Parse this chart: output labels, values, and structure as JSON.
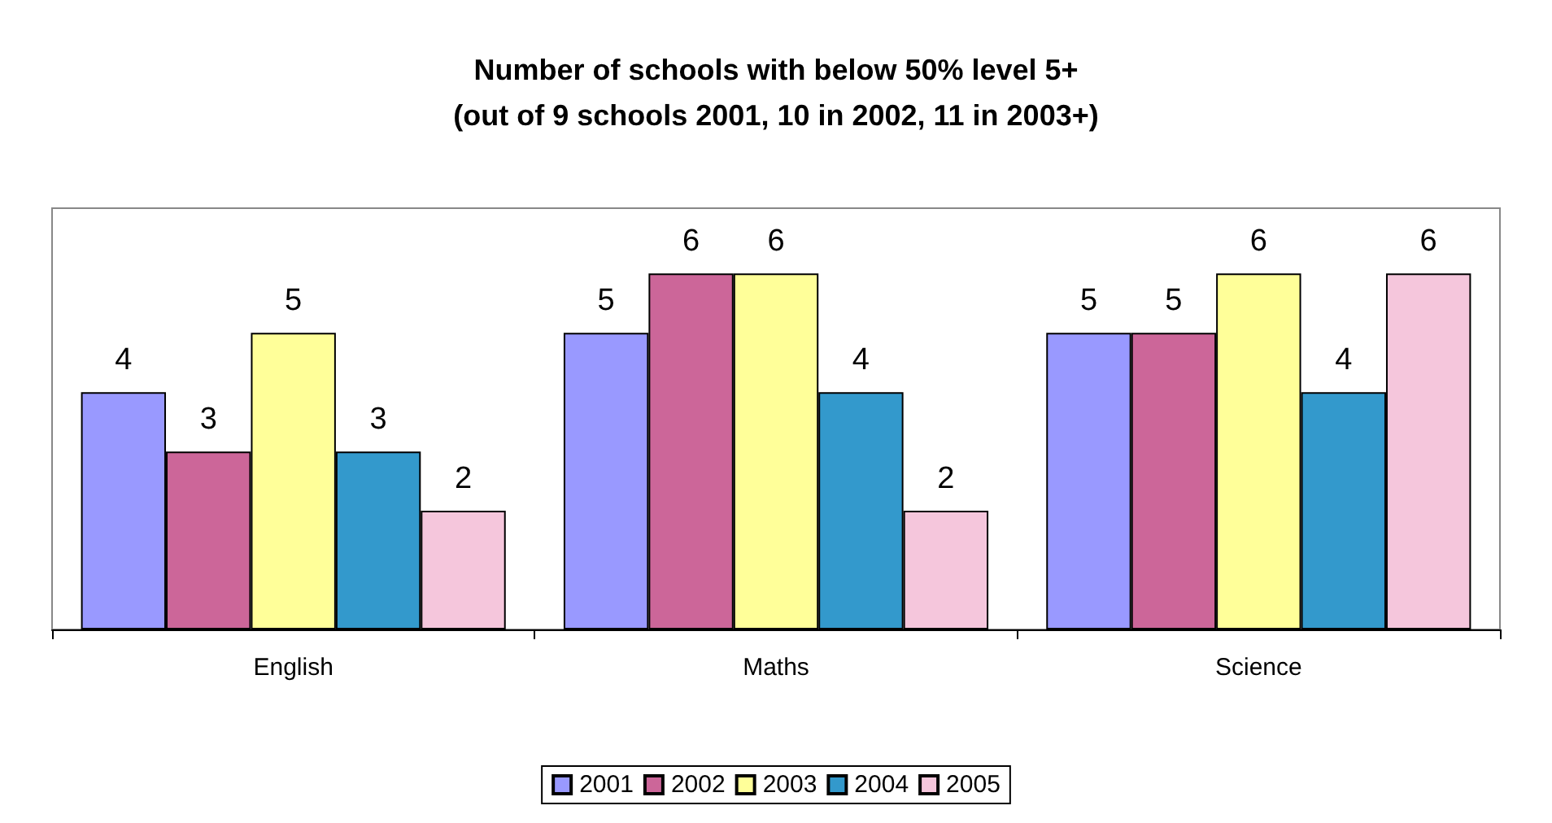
{
  "chart_data": {
    "type": "bar",
    "title": "Number of schools with below 50% level 5+\n(out of 9 schools 2001, 10 in 2002, 11 in 2003+)",
    "categories": [
      "English",
      "Maths",
      "Science"
    ],
    "series": [
      {
        "name": "2001",
        "color": "#9999ff",
        "values": [
          4,
          5,
          5
        ]
      },
      {
        "name": "2002",
        "color": "#cc6699",
        "values": [
          3,
          6,
          5
        ]
      },
      {
        "name": "2003",
        "color": "#ffff99",
        "values": [
          5,
          6,
          6
        ]
      },
      {
        "name": "2004",
        "color": "#3399cc",
        "values": [
          3,
          4,
          4
        ]
      },
      {
        "name": "2005",
        "color": "#f5c6dc",
        "values": [
          2,
          2,
          6
        ]
      }
    ],
    "data_labels": true,
    "legend": "bottom"
  }
}
